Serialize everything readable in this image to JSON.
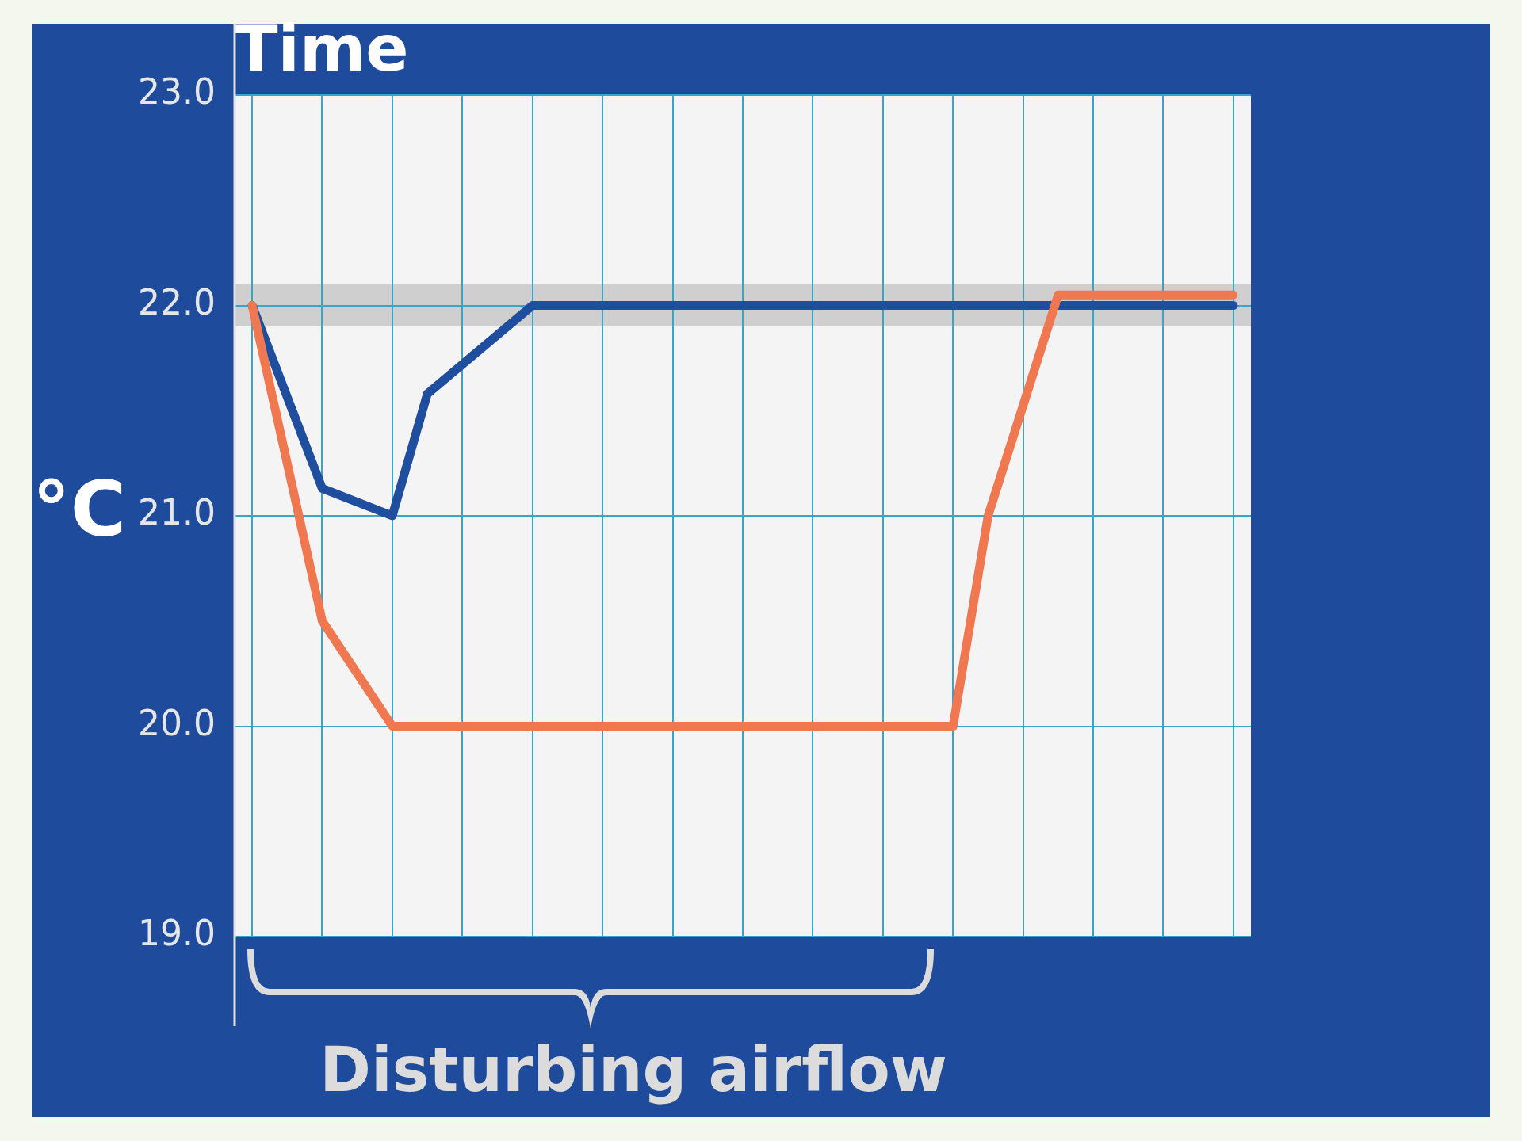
{
  "chart_data": {
    "type": "line",
    "xlabel": "Time",
    "ylabel": "°C",
    "categories": [
      null,
      null,
      null,
      null,
      null,
      null,
      null,
      null,
      null,
      null,
      null,
      null,
      null,
      null,
      null,
      null,
      null,
      null,
      null,
      null,
      null,
      null,
      null,
      null,
      null,
      null,
      null,
      null,
      null
    ],
    "series": [
      {
        "color": "#f07850",
        "values": [
          22.0,
          null,
          20.5,
          null,
          20.0,
          null,
          null,
          null,
          null,
          null,
          null,
          null,
          null,
          null,
          null,
          null,
          null,
          null,
          null,
          null,
          20.0,
          21.0,
          null,
          22.05,
          null,
          null,
          null,
          null,
          22.05
        ]
      },
      {
        "color": "#1f4e9e",
        "values": [
          22.0,
          null,
          21.13,
          null,
          21.0,
          21.58,
          null,
          null,
          22.0,
          null,
          null,
          null,
          null,
          null,
          null,
          null,
          null,
          null,
          null,
          null,
          null,
          null,
          null,
          null,
          null,
          null,
          null,
          null,
          22.0
        ]
      }
    ],
    "ylim": [
      19,
      23
    ],
    "yticks": [
      {
        "value": 19,
        "label": "19.0"
      },
      {
        "value": 20,
        "label": "20.0"
      },
      {
        "value": 21,
        "label": "21.0"
      },
      {
        "value": 22,
        "label": "22.0"
      },
      {
        "value": 23,
        "label": "23.0"
      }
    ],
    "bands": [
      {
        "axis": "y",
        "from": 21.9,
        "to": 22.1,
        "color": "#cfcfcf"
      }
    ],
    "grid": true,
    "tick_labels": "y",
    "legend": false,
    "annotations": [
      "Disturbing airflow"
    ]
  }
}
